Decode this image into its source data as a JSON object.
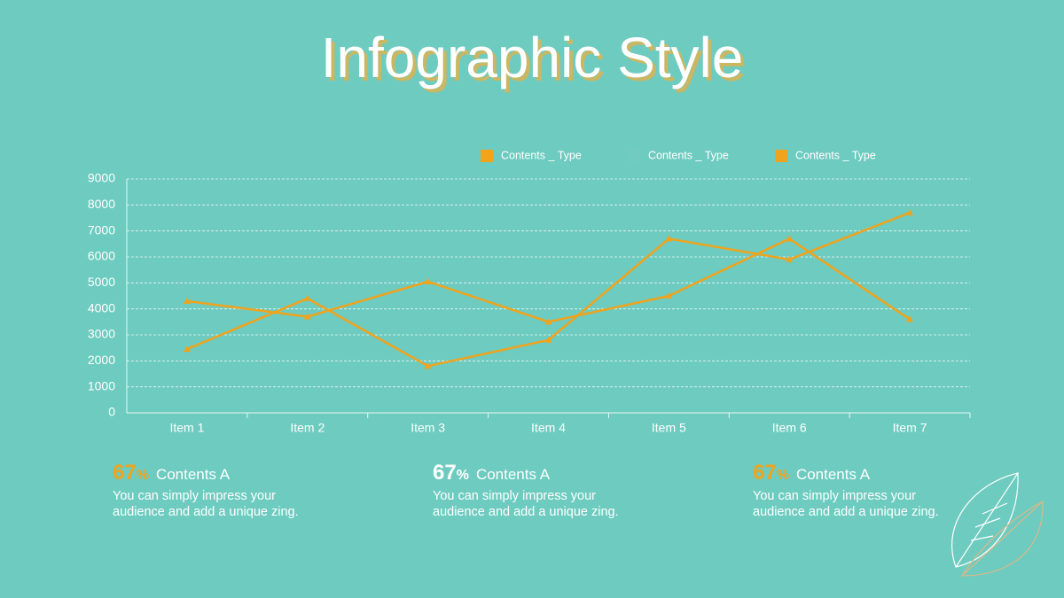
{
  "chart_data": {
    "type": "line",
    "title": "Infographic Style",
    "categories": [
      "Item 1",
      "Item 2",
      "Item 3",
      "Item 4",
      "Item 5",
      "Item 6",
      "Item 7"
    ],
    "series": [
      {
        "name": "Contents _ Type",
        "color": "#f0a31c",
        "values": [
          4300,
          3700,
          5050,
          3500,
          4500,
          6700,
          3600
        ]
      },
      {
        "name": "Contents _ Type",
        "color": "#72cbc0",
        "values": [
          null,
          null,
          null,
          null,
          null,
          null,
          null
        ]
      },
      {
        "name": "Contents _ Type",
        "color": "#f0a31c",
        "values": [
          2450,
          4400,
          1800,
          2800,
          6700,
          5900,
          7700
        ]
      }
    ],
    "ylim": [
      0,
      9000
    ],
    "yticks": [
      0,
      1000,
      2000,
      3000,
      4000,
      5000,
      6000,
      7000,
      8000,
      9000
    ],
    "grid": true
  },
  "stats": [
    {
      "value": "67",
      "unit": "%",
      "title": "Contents A",
      "text": "You can simply impress your audience and add a unique zing.",
      "color": "#f0a31c"
    },
    {
      "value": "67",
      "unit": "%",
      "title": "Contents A",
      "text": "You can simply impress your audience and add a unique zing.",
      "color": "#ffffff"
    },
    {
      "value": "67",
      "unit": "%",
      "title": "Contents A",
      "text": "You can simply impress your audience and add a unique zing.",
      "color": "#f0a31c"
    }
  ]
}
